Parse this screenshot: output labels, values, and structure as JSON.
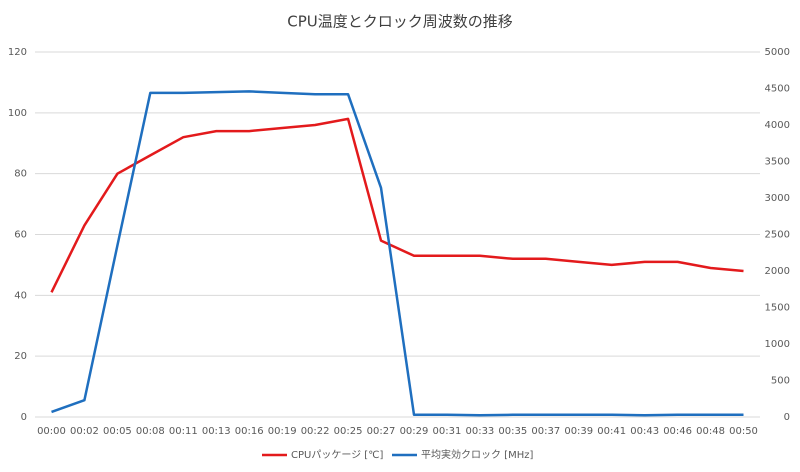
{
  "chart_data": {
    "type": "line",
    "title": "CPU温度とクロック周波数の推移",
    "categories": [
      "00:00",
      "00:02",
      "00:05",
      "00:08",
      "00:11",
      "00:13",
      "00:16",
      "00:19",
      "00:22",
      "00:25",
      "00:27",
      "00:29",
      "00:31",
      "00:33",
      "00:35",
      "00:37",
      "00:39",
      "00:41",
      "00:43",
      "00:46",
      "00:48",
      "00:50"
    ],
    "series": [
      {
        "name": "CPUパッケージ [℃]",
        "color": "#e31a1c",
        "values": [
          41,
          63,
          80,
          86,
          92,
          94,
          94,
          95,
          96,
          98,
          58,
          53,
          53,
          53,
          52,
          52,
          51,
          50,
          51,
          51,
          49,
          48
        ]
      },
      {
        "name": "平均実効クロック [MHz]",
        "color": "#1f6fbf",
        "axis": "y2",
        "values": [
          70,
          230,
          2350,
          4440,
          4440,
          4450,
          4460,
          4440,
          4420,
          4420,
          3140,
          30,
          30,
          25,
          30,
          30,
          30,
          30,
          25,
          30,
          30,
          30
        ]
      }
    ],
    "ylim": [
      0,
      120
    ],
    "yticks": [
      0,
      20,
      40,
      60,
      80,
      100,
      120
    ],
    "y2lim": [
      0,
      5000
    ],
    "y2ticks": [
      0,
      500,
      1000,
      1500,
      2000,
      2500,
      3000,
      3500,
      4000,
      4500,
      5000
    ],
    "grid": true,
    "legend": "bottom"
  }
}
